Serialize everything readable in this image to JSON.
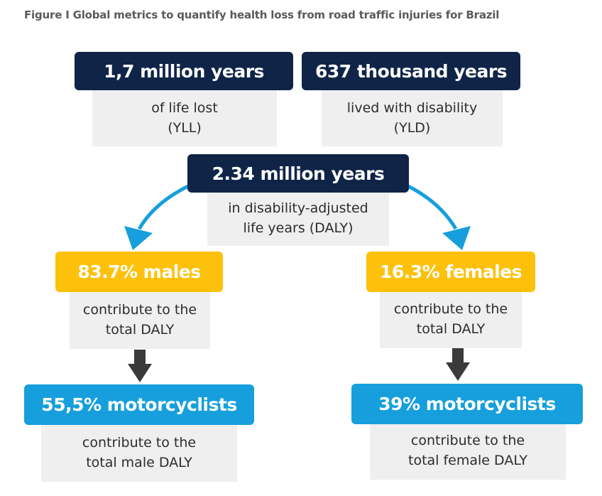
{
  "figure": {
    "title": "Figure I Global metrics to quantify health loss from road traffic injuries for Brazil"
  },
  "yll": {
    "value": "1,7 million years",
    "desc_line1": "of life lost",
    "desc_line2": "(YLL)"
  },
  "yld": {
    "value": "637 thousand years",
    "desc_line1": "lived with disability",
    "desc_line2": "(YLD)"
  },
  "daly": {
    "value": "2.34 million years",
    "desc_line1": "in disability-adjusted",
    "desc_line2": "life years (DALY)"
  },
  "males": {
    "value": "83.7% males",
    "desc_line1": "contribute to the",
    "desc_line2": "total DALY"
  },
  "females": {
    "value": "16.3% females",
    "desc_line1": "contribute to the",
    "desc_line2": "total DALY"
  },
  "male_motorcyclists": {
    "value": "55,5% motorcyclists",
    "desc_line1": "contribute to the",
    "desc_line2": "total male DALY"
  },
  "female_motorcyclists": {
    "value": "39% motorcyclists",
    "desc_line1": "contribute to the",
    "desc_line2": "total female DALY"
  },
  "colors": {
    "navy": "#0f2447",
    "yellow": "#fdc10b",
    "blue": "#169fdc",
    "gray_box": "#efefef",
    "arrow_blue": "#169fdc",
    "arrow_dark": "#3a3a3a"
  }
}
